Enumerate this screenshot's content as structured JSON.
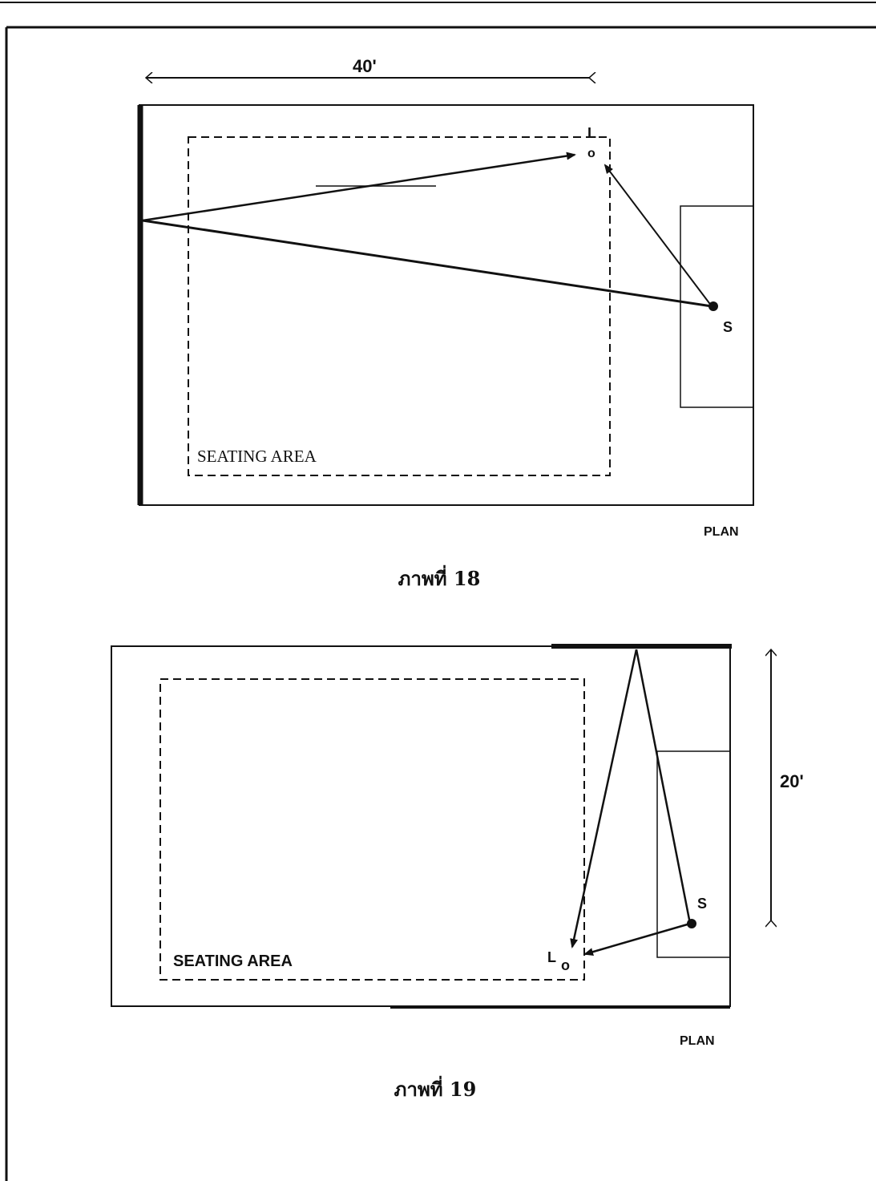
{
  "figure_18": {
    "dimension_label": "40'",
    "listener_label": "L",
    "listener_marker": "o",
    "source_label": "S",
    "seating_label": "SEATING AREA",
    "plan_label": "PLAN",
    "caption": "ภาพที่ 18"
  },
  "figure_19": {
    "dimension_label": "20'",
    "listener_label": "L",
    "listener_marker": "o",
    "source_label": "S",
    "seating_label": "SEATING AREA",
    "plan_label": "PLAN",
    "caption": "ภาพที่ 19"
  }
}
